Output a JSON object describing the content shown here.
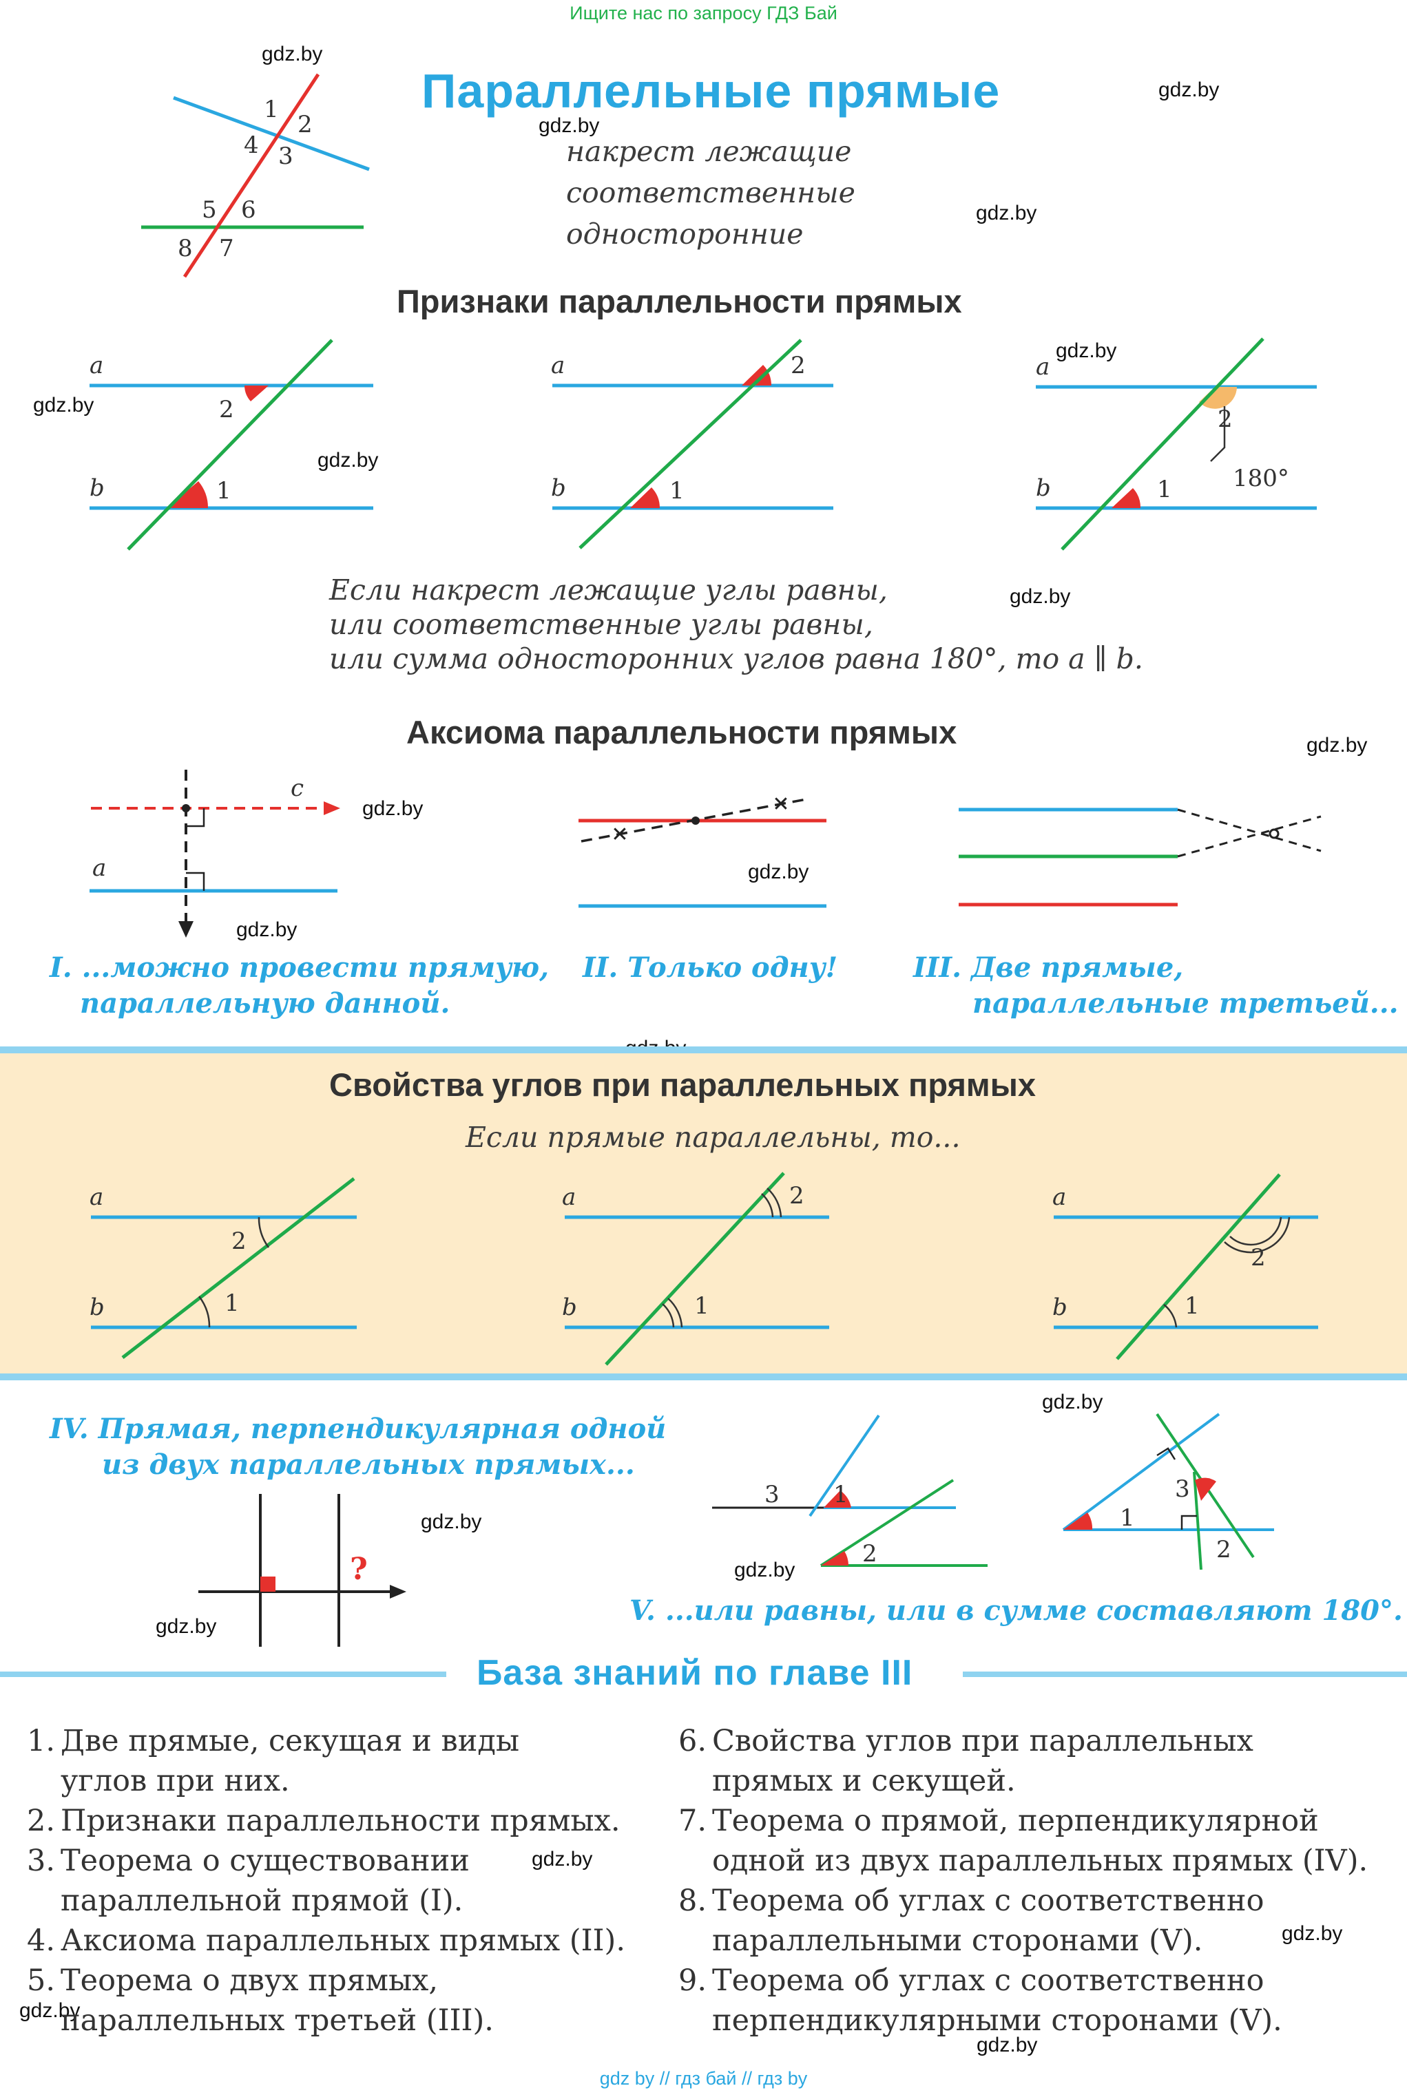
{
  "top_link": "Ищите нас по запросу ГДЗ Бай",
  "watermark": "gdz.by",
  "title": "Параллельные прямые",
  "angle_types": [
    "накрест лежащие",
    "соответственные",
    "односторонние"
  ],
  "intro_labels": [
    "1",
    "2",
    "4",
    "3",
    "5",
    "6",
    "8",
    "7"
  ],
  "criteria": {
    "heading": "Признаки параллельности прямых",
    "line_a": "a",
    "line_b": "b",
    "angle1": "1",
    "angle2": "2",
    "sum_label": "180°",
    "text": [
      "Если накрест лежащие углы равны,",
      "или соответственные углы  равны,",
      "или сумма односторонних углов равна 180°, то a ∥ b."
    ]
  },
  "axiom": {
    "heading": "Аксиома параллельности прямых",
    "line_c": "c",
    "line_a": "a",
    "caption1": [
      "I. ...можно провести прямую,",
      "параллельную данной."
    ],
    "caption2": "II. Только одну!",
    "caption3": [
      "III. Две прямые,",
      "параллельные третьей..."
    ]
  },
  "properties": {
    "heading": "Свойства углов при параллельных прямых",
    "subtitle": "Если прямые параллельны, то...",
    "line_a": "a",
    "line_b": "b",
    "angle1": "1",
    "angle2": "2"
  },
  "perpendicular": {
    "caption": [
      "IV. Прямая, перпендикулярная одной",
      "из двух параллельных прямых..."
    ],
    "question": "?"
  },
  "sides": {
    "labels": [
      "3",
      "1",
      "2"
    ],
    "caption": "V. ...или равны, или в сумме составляют 180°."
  },
  "knowledge_base": {
    "heading": "База знаний по главе III",
    "left": [
      {
        "n": "1.",
        "lines": [
          "Две прямые, секущая и виды",
          "углов при них."
        ]
      },
      {
        "n": "2.",
        "lines": [
          "Признаки параллельности прямых."
        ]
      },
      {
        "n": "3.",
        "lines": [
          "Теорема о существовании",
          "параллельной прямой (I)."
        ]
      },
      {
        "n": "4.",
        "lines": [
          "Аксиома параллельных прямых (II)."
        ]
      },
      {
        "n": "5.",
        "lines": [
          "Теорема о двух прямых,",
          "параллельных третьей (III)."
        ]
      }
    ],
    "right": [
      {
        "n": "6.",
        "lines": [
          "Свойства углов при параллельных",
          "прямых и секущей."
        ]
      },
      {
        "n": "7.",
        "lines": [
          "Теорема о прямой, перпендикулярной",
          "одной из двух параллельных прямых (IV)."
        ]
      },
      {
        "n": "8.",
        "lines": [
          "Теорема об углах с соответственно",
          "параллельными сторонами (V)."
        ]
      },
      {
        "n": "9.",
        "lines": [
          "Теорема об углах с соответственно",
          "перпендикулярными сторонами (V)."
        ]
      }
    ]
  },
  "footer": "gdz by  //  гдз бай  //  гдз by",
  "colors": {
    "blue": "#2aa7e0",
    "green": "#1faa4a",
    "red": "#e5312d",
    "orange": "#f5b96a",
    "band": "#fdebc9"
  }
}
